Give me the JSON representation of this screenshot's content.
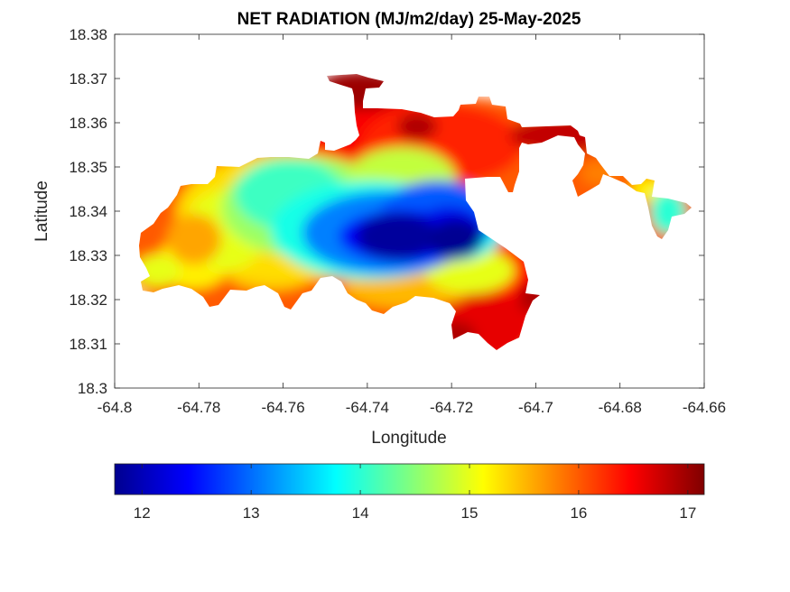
{
  "chart_data": {
    "type": "heatmap",
    "title": "NET RADIATION (MJ/m2/day) 25-May-2025",
    "xlabel": "Longitude",
    "ylabel": "Latitude",
    "xlim": [
      -64.8,
      -64.66
    ],
    "ylim": [
      18.3,
      18.38
    ],
    "x_ticks": [
      "-64.8",
      "-64.78",
      "-64.76",
      "-64.74",
      "-64.72",
      "-64.7",
      "-64.68",
      "-64.66"
    ],
    "y_ticks": [
      "18.38",
      "18.37",
      "18.36",
      "18.35",
      "18.34",
      "18.33",
      "18.32",
      "18.31",
      "18.3"
    ],
    "grid": false,
    "colormap": "jet",
    "colorbar": {
      "orientation": "horizontal",
      "placement": "bottom",
      "range": [
        11.75,
        17.15
      ],
      "ticks": [
        "12",
        "13",
        "14",
        "15",
        "16",
        "17"
      ]
    },
    "field_summary": [
      {
        "lon": -64.725,
        "lat": 18.334,
        "value": 11.9
      },
      {
        "lon": -64.735,
        "lat": 18.3345,
        "value": 12.0
      },
      {
        "lon": -64.748,
        "lat": 18.333,
        "value": 13.0
      },
      {
        "lon": -64.757,
        "lat": 18.3405,
        "value": 14.0
      },
      {
        "lon": -64.768,
        "lat": 18.332,
        "value": 15.0
      },
      {
        "lon": -64.78,
        "lat": 18.331,
        "value": 15.8
      },
      {
        "lon": -64.79,
        "lat": 18.335,
        "value": 16.0
      },
      {
        "lon": -64.718,
        "lat": 18.318,
        "value": 16.2
      },
      {
        "lon": -64.735,
        "lat": 18.363,
        "value": 16.5
      },
      {
        "lon": -64.74,
        "lat": 18.369,
        "value": 17.0
      },
      {
        "lon": -64.671,
        "lat": 18.338,
        "value": 14.0
      }
    ]
  }
}
